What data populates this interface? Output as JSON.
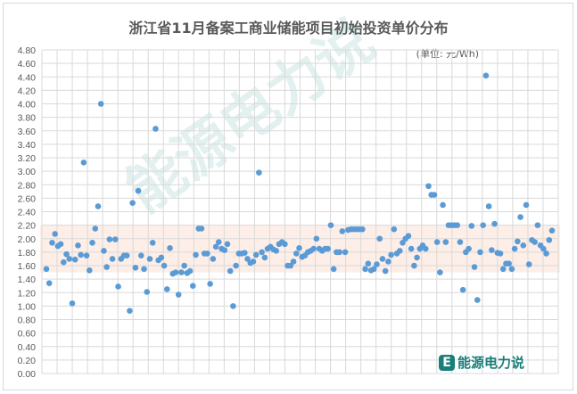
{
  "chart_data": {
    "type": "scatter",
    "title": "浙江省11月备案工商业储能项目初始投资单价分布",
    "unit_label": "(单位: 元/Wh)",
    "xlabel": "",
    "ylabel": "",
    "ylim": [
      0,
      4.8
    ],
    "ytick_step": 0.2,
    "grid": true,
    "legend": "none",
    "marker_color": "#5b9bd5",
    "band": {
      "from": 1.5,
      "to": 2.2,
      "color": "#fbe3d8"
    },
    "values": [
      1.55,
      1.34,
      1.94,
      2.07,
      1.89,
      1.92,
      1.65,
      1.77,
      1.7,
      1.04,
      1.69,
      1.9,
      1.76,
      3.13,
      1.75,
      1.53,
      1.94,
      2.15,
      2.48,
      4.0,
      1.82,
      1.58,
      1.99,
      1.7,
      1.99,
      1.29,
      1.7,
      1.75,
      1.75,
      0.93,
      2.53,
      1.57,
      2.71,
      1.75,
      1.55,
      1.21,
      1.7,
      1.94,
      3.63,
      1.68,
      1.72,
      1.6,
      1.25,
      1.86,
      1.48,
      1.5,
      1.17,
      1.5,
      1.6,
      1.49,
      1.52,
      1.3,
      1.76,
      2.15,
      2.15,
      1.78,
      1.78,
      1.33,
      1.7,
      1.88,
      1.95,
      1.85,
      1.83,
      1.92,
      1.52,
      1.0,
      1.6,
      1.78,
      1.78,
      1.79,
      1.7,
      1.64,
      1.66,
      1.76,
      2.98,
      1.8,
      1.72,
      1.85,
      1.88,
      1.84,
      1.82,
      1.92,
      1.95,
      1.92,
      1.6,
      1.6,
      1.66,
      1.78,
      1.86,
      1.73,
      1.75,
      1.8,
      1.82,
      1.85,
      2.0,
      1.85,
      1.82,
      1.85,
      1.85,
      2.2,
      1.55,
      1.8,
      1.8,
      2.11,
      1.8,
      2.13,
      2.14,
      2.14,
      2.14,
      2.14,
      2.14,
      1.55,
      1.63,
      1.53,
      1.55,
      1.62,
      2.0,
      1.7,
      1.52,
      1.66,
      1.76,
      2.14,
      1.78,
      1.82,
      1.94,
      2.0,
      2.04,
      1.85,
      1.6,
      1.72,
      1.85,
      1.9,
      1.85,
      2.78,
      2.65,
      2.65,
      1.95,
      1.5,
      2.5,
      1.95,
      2.2,
      2.2,
      2.2,
      2.2,
      1.95,
      1.24,
      1.8,
      1.85,
      2.19,
      1.58,
      1.09,
      1.8,
      2.2,
      4.42,
      2.48,
      1.83,
      2.22,
      1.79,
      1.78,
      1.55,
      1.63,
      1.63,
      1.55,
      1.85,
      1.96,
      2.32,
      1.9,
      2.5,
      1.62,
      1.98,
      1.95,
      2.2,
      1.9,
      1.85,
      1.78,
      1.98,
      2.12
    ]
  },
  "logo": {
    "text": "能源电力说",
    "mark": "E"
  },
  "watermark": "能源电力说"
}
